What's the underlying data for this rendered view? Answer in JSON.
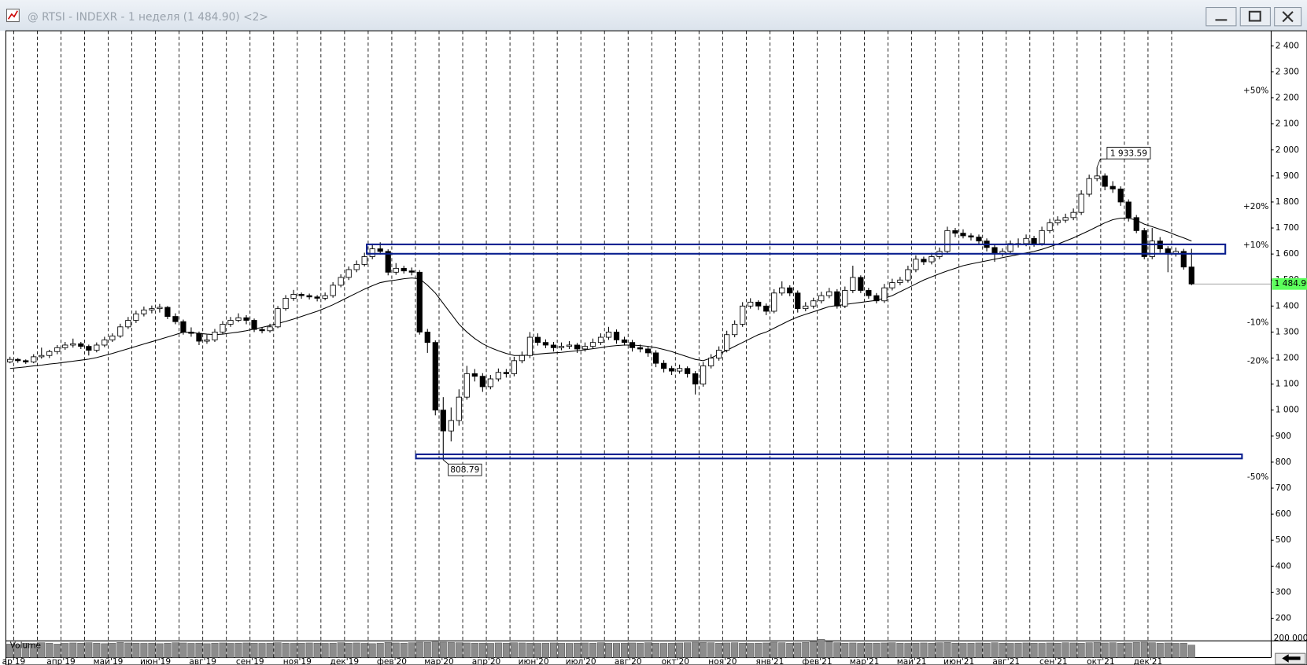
{
  "window": {
    "title": "@ RTSI - INDEXR - 1 неделя (1 484.90) <2>"
  },
  "chart_data": {
    "type": "candlestick",
    "up_color": "#ffffff",
    "down_color": "#000000",
    "ma_color": "#000000",
    "volume_color": "#8c8c8c",
    "up_level_color": "#2e8b2e",
    "down_level_color": "#8b1a1a",
    "zone_color": "#0a1f8f",
    "last_color": "#5cff5c",
    "ylim": [
      113,
      2458
    ],
    "yticks": [
      200,
      300,
      400,
      500,
      600,
      700,
      800,
      900,
      {
        "value": 1000,
        "label": "1 000"
      },
      {
        "value": 1100,
        "label": "1 100"
      },
      {
        "value": 1200,
        "label": "1 200"
      },
      {
        "value": 1300,
        "label": "1 300"
      },
      {
        "value": 1400,
        "label": "1 400"
      },
      {
        "value": 1500,
        "label": "1 500"
      },
      {
        "value": 1600,
        "label": "1 600"
      },
      {
        "value": 1700,
        "label": "1 700"
      },
      {
        "value": 1800,
        "label": "1 800"
      },
      {
        "value": 1900,
        "label": "1 900"
      },
      {
        "value": 2000,
        "label": "2 000"
      },
      {
        "value": 2100,
        "label": "2 100"
      },
      {
        "value": 2200,
        "label": "2 200"
      },
      {
        "value": 2300,
        "label": "2 300"
      },
      {
        "value": 2400,
        "label": "2 400"
      }
    ],
    "percent_levels": [
      {
        "value": 2227.35,
        "label": "+50%"
      },
      {
        "value": 1781.88,
        "label": "+20%"
      },
      {
        "value": 1633.39,
        "label": "+10%"
      },
      {
        "value": 1336.41,
        "label": "-10%"
      },
      {
        "value": 1187.92,
        "label": "-20%"
      },
      {
        "value": 742.45,
        "label": "-50%"
      }
    ],
    "last": {
      "value": 1484.9,
      "label": "1 484.90"
    },
    "annotations": [
      {
        "value": 1933.59,
        "label": "1 933.59"
      },
      {
        "value": 808.79,
        "label": "808.79"
      }
    ],
    "zones": [
      {
        "top": 1637,
        "bottom": 1601
      },
      {
        "top": 830,
        "bottom": 814
      }
    ],
    "volume_label": "Volume",
    "volume_lim": [
      0,
      200000
    ],
    "volume_ticks": [
      {
        "value": 200000,
        "label": "200 000"
      }
    ],
    "categories": [
      null,
      "ар'19",
      null,
      null,
      null,
      null,
      null,
      "апр'19",
      null,
      null,
      null,
      null,
      null,
      "май'19",
      null,
      null,
      null,
      null,
      null,
      "июн'19",
      null,
      null,
      null,
      null,
      null,
      "авг'19",
      null,
      null,
      null,
      null,
      null,
      "сен'19",
      null,
      null,
      null,
      null,
      null,
      "ноя'19",
      null,
      null,
      null,
      null,
      null,
      "дек'19",
      null,
      null,
      null,
      null,
      null,
      "фев'20",
      null,
      null,
      null,
      null,
      null,
      "мар'20",
      null,
      null,
      null,
      null,
      null,
      "апр'20",
      null,
      null,
      null,
      null,
      null,
      "июн'20",
      null,
      null,
      null,
      null,
      null,
      "июл'20",
      null,
      null,
      null,
      null,
      null,
      "авг'20",
      null,
      null,
      null,
      null,
      null,
      "окт'20",
      null,
      null,
      null,
      null,
      null,
      "ноя'20",
      null,
      null,
      null,
      null,
      null,
      "янв'21",
      null,
      null,
      null,
      null,
      null,
      "фев'21",
      null,
      null,
      null,
      null,
      null,
      "мар'21",
      null,
      null,
      null,
      null,
      null,
      "май'21",
      null,
      null,
      null,
      null,
      null,
      "июн'21",
      null,
      null,
      null,
      null,
      null,
      "авг'21",
      null,
      null,
      null,
      null,
      null,
      "сен'21",
      null,
      null,
      null,
      null,
      null,
      "окт'21",
      null,
      null,
      null,
      null,
      null,
      "дек'21",
      null,
      null,
      null,
      null,
      null
    ],
    "candles": [
      [
        1185,
        1205,
        1180,
        1195
      ],
      [
        1195,
        1200,
        1182,
        1190
      ],
      [
        1190,
        1195,
        1178,
        1185
      ],
      [
        1185,
        1215,
        1180,
        1205
      ],
      [
        1205,
        1240,
        1198,
        1210
      ],
      [
        1210,
        1232,
        1200,
        1225
      ],
      [
        1225,
        1250,
        1215,
        1240
      ],
      [
        1240,
        1262,
        1232,
        1250
      ],
      [
        1250,
        1275,
        1240,
        1255
      ],
      [
        1255,
        1262,
        1235,
        1245
      ],
      [
        1245,
        1252,
        1210,
        1230
      ],
      [
        1230,
        1260,
        1222,
        1250
      ],
      [
        1250,
        1282,
        1242,
        1270
      ],
      [
        1270,
        1295,
        1262,
        1285
      ],
      [
        1285,
        1332,
        1278,
        1320
      ],
      [
        1320,
        1358,
        1312,
        1345
      ],
      [
        1345,
        1382,
        1335,
        1370
      ],
      [
        1370,
        1398,
        1360,
        1385
      ],
      [
        1385,
        1402,
        1372,
        1390
      ],
      [
        1390,
        1408,
        1375,
        1395
      ],
      [
        1395,
        1400,
        1350,
        1360
      ],
      [
        1360,
        1372,
        1330,
        1340
      ],
      [
        1340,
        1348,
        1290,
        1300
      ],
      [
        1300,
        1318,
        1282,
        1295
      ],
      [
        1295,
        1302,
        1250,
        1265
      ],
      [
        1265,
        1290,
        1255,
        1270
      ],
      [
        1270,
        1312,
        1262,
        1300
      ],
      [
        1300,
        1342,
        1292,
        1330
      ],
      [
        1330,
        1358,
        1320,
        1345
      ],
      [
        1345,
        1372,
        1338,
        1355
      ],
      [
        1355,
        1365,
        1330,
        1345
      ],
      [
        1345,
        1352,
        1300,
        1310
      ],
      [
        1310,
        1318,
        1295,
        1305
      ],
      [
        1305,
        1332,
        1298,
        1320
      ],
      [
        1320,
        1400,
        1315,
        1390
      ],
      [
        1390,
        1442,
        1382,
        1430
      ],
      [
        1430,
        1462,
        1420,
        1445
      ],
      [
        1445,
        1452,
        1428,
        1440
      ],
      [
        1440,
        1448,
        1425,
        1435
      ],
      [
        1435,
        1442,
        1418,
        1430
      ],
      [
        1430,
        1452,
        1422,
        1440
      ],
      [
        1440,
        1492,
        1432,
        1480
      ],
      [
        1480,
        1522,
        1472,
        1510
      ],
      [
        1510,
        1552,
        1500,
        1540
      ],
      [
        1540,
        1575,
        1530,
        1560
      ],
      [
        1560,
        1605,
        1552,
        1590
      ],
      [
        1590,
        1640,
        1580,
        1620
      ],
      [
        1620,
        1645,
        1598,
        1610
      ],
      [
        1610,
        1618,
        1518,
        1530
      ],
      [
        1530,
        1565,
        1520,
        1545
      ],
      [
        1545,
        1555,
        1525,
        1535
      ],
      [
        1535,
        1548,
        1518,
        1530
      ],
      [
        1530,
        1538,
        1290,
        1300
      ],
      [
        1300,
        1312,
        1220,
        1260
      ],
      [
        1260,
        1268,
        980,
        1000
      ],
      [
        1000,
        1050,
        808.79,
        920
      ],
      [
        920,
        1010,
        880,
        960
      ],
      [
        960,
        1080,
        940,
        1050
      ],
      [
        1050,
        1170,
        1040,
        1140
      ],
      [
        1140,
        1158,
        1110,
        1130
      ],
      [
        1130,
        1142,
        1070,
        1090
      ],
      [
        1090,
        1135,
        1080,
        1120
      ],
      [
        1120,
        1160,
        1110,
        1145
      ],
      [
        1145,
        1158,
        1125,
        1140
      ],
      [
        1140,
        1205,
        1130,
        1190
      ],
      [
        1190,
        1225,
        1180,
        1210
      ],
      [
        1210,
        1300,
        1200,
        1280
      ],
      [
        1280,
        1295,
        1248,
        1260
      ],
      [
        1260,
        1272,
        1238,
        1250
      ],
      [
        1250,
        1262,
        1225,
        1240
      ],
      [
        1240,
        1260,
        1230,
        1245
      ],
      [
        1245,
        1265,
        1235,
        1250
      ],
      [
        1250,
        1258,
        1220,
        1235
      ],
      [
        1235,
        1260,
        1225,
        1245
      ],
      [
        1245,
        1275,
        1235,
        1260
      ],
      [
        1260,
        1295,
        1250,
        1280
      ],
      [
        1280,
        1320,
        1270,
        1300
      ],
      [
        1300,
        1310,
        1255,
        1270
      ],
      [
        1270,
        1282,
        1248,
        1260
      ],
      [
        1260,
        1270,
        1225,
        1240
      ],
      [
        1240,
        1252,
        1222,
        1235
      ],
      [
        1235,
        1245,
        1205,
        1220
      ],
      [
        1220,
        1230,
        1165,
        1180
      ],
      [
        1180,
        1192,
        1145,
        1160
      ],
      [
        1160,
        1170,
        1135,
        1150
      ],
      [
        1150,
        1175,
        1140,
        1160
      ],
      [
        1160,
        1168,
        1125,
        1140
      ],
      [
        1140,
        1150,
        1060,
        1100
      ],
      [
        1100,
        1185,
        1090,
        1170
      ],
      [
        1170,
        1215,
        1160,
        1200
      ],
      [
        1200,
        1245,
        1190,
        1230
      ],
      [
        1230,
        1305,
        1222,
        1290
      ],
      [
        1290,
        1345,
        1280,
        1330
      ],
      [
        1330,
        1415,
        1320,
        1400
      ],
      [
        1400,
        1430,
        1390,
        1415
      ],
      [
        1415,
        1422,
        1385,
        1400
      ],
      [
        1400,
        1410,
        1365,
        1380
      ],
      [
        1380,
        1465,
        1372,
        1450
      ],
      [
        1450,
        1495,
        1440,
        1470
      ],
      [
        1470,
        1480,
        1438,
        1450
      ],
      [
        1450,
        1460,
        1375,
        1390
      ],
      [
        1390,
        1415,
        1380,
        1400
      ],
      [
        1400,
        1432,
        1390,
        1420
      ],
      [
        1420,
        1455,
        1410,
        1440
      ],
      [
        1440,
        1470,
        1430,
        1455
      ],
      [
        1455,
        1465,
        1390,
        1400
      ],
      [
        1400,
        1475,
        1392,
        1460
      ],
      [
        1460,
        1555,
        1450,
        1510
      ],
      [
        1510,
        1518,
        1450,
        1460
      ],
      [
        1460,
        1470,
        1428,
        1440
      ],
      [
        1440,
        1450,
        1410,
        1420
      ],
      [
        1420,
        1485,
        1412,
        1470
      ],
      [
        1470,
        1505,
        1460,
        1490
      ],
      [
        1490,
        1512,
        1480,
        1500
      ],
      [
        1500,
        1555,
        1490,
        1540
      ],
      [
        1540,
        1595,
        1530,
        1580
      ],
      [
        1580,
        1590,
        1558,
        1570
      ],
      [
        1570,
        1605,
        1560,
        1590
      ],
      [
        1590,
        1625,
        1580,
        1610
      ],
      [
        1610,
        1705,
        1600,
        1690
      ],
      [
        1690,
        1700,
        1665,
        1680
      ],
      [
        1680,
        1695,
        1660,
        1670
      ],
      [
        1670,
        1680,
        1652,
        1665
      ],
      [
        1665,
        1675,
        1638,
        1650
      ],
      [
        1650,
        1660,
        1610,
        1625
      ],
      [
        1625,
        1635,
        1570,
        1600
      ],
      [
        1600,
        1622,
        1590,
        1610
      ],
      [
        1610,
        1652,
        1600,
        1640
      ],
      [
        1640,
        1660,
        1625,
        1640
      ],
      [
        1640,
        1675,
        1630,
        1660
      ],
      [
        1660,
        1670,
        1628,
        1640
      ],
      [
        1640,
        1705,
        1632,
        1690
      ],
      [
        1690,
        1735,
        1680,
        1720
      ],
      [
        1720,
        1745,
        1710,
        1730
      ],
      [
        1730,
        1755,
        1720,
        1740
      ],
      [
        1740,
        1775,
        1730,
        1760
      ],
      [
        1760,
        1845,
        1750,
        1830
      ],
      [
        1830,
        1905,
        1820,
        1890
      ],
      [
        1890,
        1933.59,
        1880,
        1900
      ],
      [
        1900,
        1910,
        1845,
        1860
      ],
      [
        1860,
        1880,
        1835,
        1850
      ],
      [
        1850,
        1860,
        1785,
        1800
      ],
      [
        1800,
        1810,
        1725,
        1740
      ],
      [
        1740,
        1750,
        1680,
        1690
      ],
      [
        1690,
        1700,
        1580,
        1590
      ],
      [
        1590,
        1700,
        1580,
        1650
      ],
      [
        1650,
        1665,
        1605,
        1620
      ],
      [
        1620,
        1630,
        1530,
        1600
      ],
      [
        1600,
        1625,
        1590,
        1610
      ],
      [
        1610,
        1620,
        1540,
        1550
      ],
      [
        1550,
        1620,
        1480,
        1484.9
      ]
    ],
    "ma_values": [
      1160,
      1163,
      1166,
      1170,
      1173,
      1177,
      1180,
      1184,
      1188,
      1192,
      1196,
      1202,
      1210,
      1218,
      1227,
      1236,
      1245,
      1254,
      1263,
      1272,
      1281,
      1290,
      1300,
      1298,
      1295,
      1292,
      1290,
      1292,
      1296,
      1300,
      1305,
      1312,
      1318,
      1325,
      1333,
      1341,
      1350,
      1360,
      1370,
      1380,
      1392,
      1405,
      1420,
      1435,
      1450,
      1465,
      1478,
      1490,
      1496,
      1500,
      1505,
      1508,
      1505,
      1480,
      1450,
      1410,
      1370,
      1330,
      1300,
      1275,
      1255,
      1240,
      1228,
      1218,
      1210,
      1210,
      1212,
      1215,
      1218,
      1220,
      1222,
      1225,
      1228,
      1232,
      1236,
      1240,
      1245,
      1248,
      1250,
      1250,
      1248,
      1245,
      1240,
      1233,
      1225,
      1215,
      1205,
      1195,
      1190,
      1200,
      1215,
      1230,
      1245,
      1260,
      1275,
      1290,
      1300,
      1315,
      1330,
      1345,
      1358,
      1368,
      1378,
      1388,
      1398,
      1402,
      1406,
      1410,
      1414,
      1418,
      1422,
      1430,
      1440,
      1455,
      1470,
      1485,
      1500,
      1512,
      1524,
      1535,
      1545,
      1555,
      1562,
      1568,
      1574,
      1580,
      1586,
      1592,
      1598,
      1604,
      1610,
      1618,
      1628,
      1638,
      1650,
      1662,
      1676,
      1690,
      1705,
      1720,
      1732,
      1738,
      1738,
      1730,
      1715,
      1705,
      1695,
      1685,
      1673,
      1662,
      1650
    ],
    "volume": [
      140000,
      135000,
      150000,
      145000,
      155000,
      150000,
      140000,
      148000,
      152000,
      150000,
      155000,
      150000,
      145000,
      150000,
      158000,
      152000,
      150000,
      148000,
      150000,
      145000,
      150000,
      155000,
      152000,
      148000,
      150000,
      145000,
      150000,
      152000,
      148000,
      150000,
      152000,
      150000,
      148000,
      150000,
      155000,
      150000,
      148000,
      150000,
      152000,
      150000,
      148000,
      150000,
      155000,
      150000,
      152000,
      148000,
      145000,
      150000,
      158000,
      152000,
      150000,
      155000,
      160000,
      158000,
      162000,
      160000,
      158000,
      155000,
      152000,
      150000,
      150000,
      148000,
      152000,
      150000,
      155000,
      152000,
      150000,
      148000,
      150000,
      152000,
      150000,
      148000,
      150000,
      152000,
      150000,
      155000,
      150000,
      148000,
      150000,
      152000,
      150000,
      155000,
      150000,
      148000,
      150000,
      152000,
      155000,
      160000,
      158000,
      155000,
      150000,
      152000,
      155000,
      150000,
      148000,
      150000,
      152000,
      160000,
      155000,
      150000,
      152000,
      158000,
      170000,
      190000,
      165000,
      155000,
      150000,
      152000,
      148000,
      150000,
      150000,
      152000,
      155000,
      150000,
      148000,
      150000,
      152000,
      150000,
      155000,
      158000,
      150000,
      148000,
      150000,
      152000,
      150000,
      155000,
      150000,
      148000,
      150000,
      152000,
      150000,
      148000,
      152000,
      150000,
      155000,
      152000,
      150000,
      155000,
      158000,
      152000,
      155000,
      150000,
      152000,
      158000,
      160000,
      155000,
      150000,
      152000,
      148000,
      150000,
      130000
    ]
  }
}
